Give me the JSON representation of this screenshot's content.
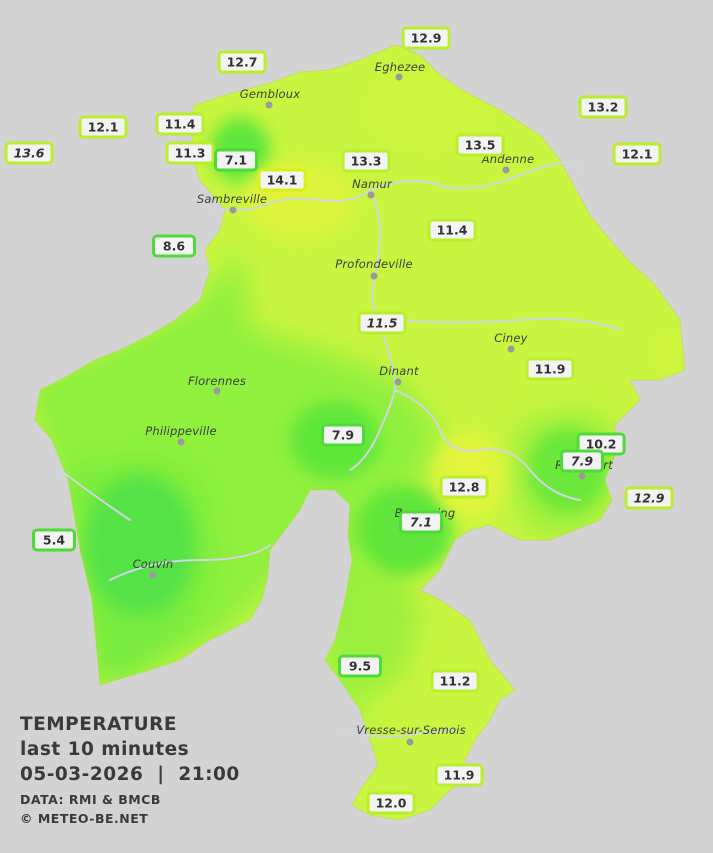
{
  "legend": {
    "title": "TEMPERATURE",
    "period": "last 10 minutes",
    "datetime": "05-03-2026  |  21:00",
    "source": "DATA: RMI & BMCB",
    "copyright": "© METEO-BE.NET"
  },
  "towns": [
    {
      "id": "gembloux",
      "label": "Gembloux"
    },
    {
      "id": "eghezee",
      "label": "Eghezee"
    },
    {
      "id": "andenne",
      "label": "Andenne"
    },
    {
      "id": "namur",
      "label": "Namur"
    },
    {
      "id": "sambreville",
      "label": "Sambreville"
    },
    {
      "id": "profondeville",
      "label": "Profondeville"
    },
    {
      "id": "ciney",
      "label": "Ciney"
    },
    {
      "id": "florennes",
      "label": "Florennes"
    },
    {
      "id": "dinant",
      "label": "Dinant"
    },
    {
      "id": "philippeville",
      "label": "Philippeville"
    },
    {
      "id": "rochefort",
      "label": "Rochefort"
    },
    {
      "id": "beauraing",
      "label": "Beauraing"
    },
    {
      "id": "couvin",
      "label": "Couvin"
    },
    {
      "id": "vresse",
      "label": "Vresse-sur-Semois"
    }
  ],
  "stations": [
    {
      "value": "12.9",
      "italic": false,
      "tone": "warm"
    },
    {
      "value": "12.7",
      "italic": false,
      "tone": "warm"
    },
    {
      "value": "13.2",
      "italic": false,
      "tone": "warm"
    },
    {
      "value": "12.1",
      "italic": false,
      "tone": "warm"
    },
    {
      "value": "11.4",
      "italic": false,
      "tone": "warm"
    },
    {
      "value": "13.5",
      "italic": false,
      "tone": "warm"
    },
    {
      "value": "13.6",
      "italic": true,
      "tone": "warm"
    },
    {
      "value": "11.3",
      "italic": false,
      "tone": "warm"
    },
    {
      "value": "7.1",
      "italic": false,
      "tone": "cool"
    },
    {
      "value": "13.3",
      "italic": false,
      "tone": "warm"
    },
    {
      "value": "12.1",
      "italic": false,
      "tone": "warm"
    },
    {
      "value": "14.1",
      "italic": false,
      "tone": "hot"
    },
    {
      "value": "8.6",
      "italic": false,
      "tone": "cool"
    },
    {
      "value": "11.4",
      "italic": false,
      "tone": "warm"
    },
    {
      "value": "11.5",
      "italic": true,
      "tone": "warm"
    },
    {
      "value": "11.9",
      "italic": false,
      "tone": "warm"
    },
    {
      "value": "7.9",
      "italic": false,
      "tone": "cool"
    },
    {
      "value": "10.2",
      "italic": false,
      "tone": "cool"
    },
    {
      "value": "7.9",
      "italic": true,
      "tone": "cool"
    },
    {
      "value": "12.8",
      "italic": false,
      "tone": "warm"
    },
    {
      "value": "12.9",
      "italic": true,
      "tone": "warm"
    },
    {
      "value": "5.4",
      "italic": false,
      "tone": "cool"
    },
    {
      "value": "7.1",
      "italic": true,
      "tone": "cool"
    },
    {
      "value": "9.5",
      "italic": false,
      "tone": "cool"
    },
    {
      "value": "11.2",
      "italic": false,
      "tone": "warm"
    },
    {
      "value": "11.9",
      "italic": false,
      "tone": "warm"
    },
    {
      "value": "12.0",
      "italic": false,
      "tone": "warm"
    }
  ],
  "colors": {
    "background": "#d3d3d3",
    "map_base": "#c8f53f",
    "mild_green": "#8ff03c",
    "cool_green": "#6be63a",
    "cold_green": "#3fdc48",
    "warm_yellow": "#e6f53a",
    "river": "#cfd6e0"
  }
}
